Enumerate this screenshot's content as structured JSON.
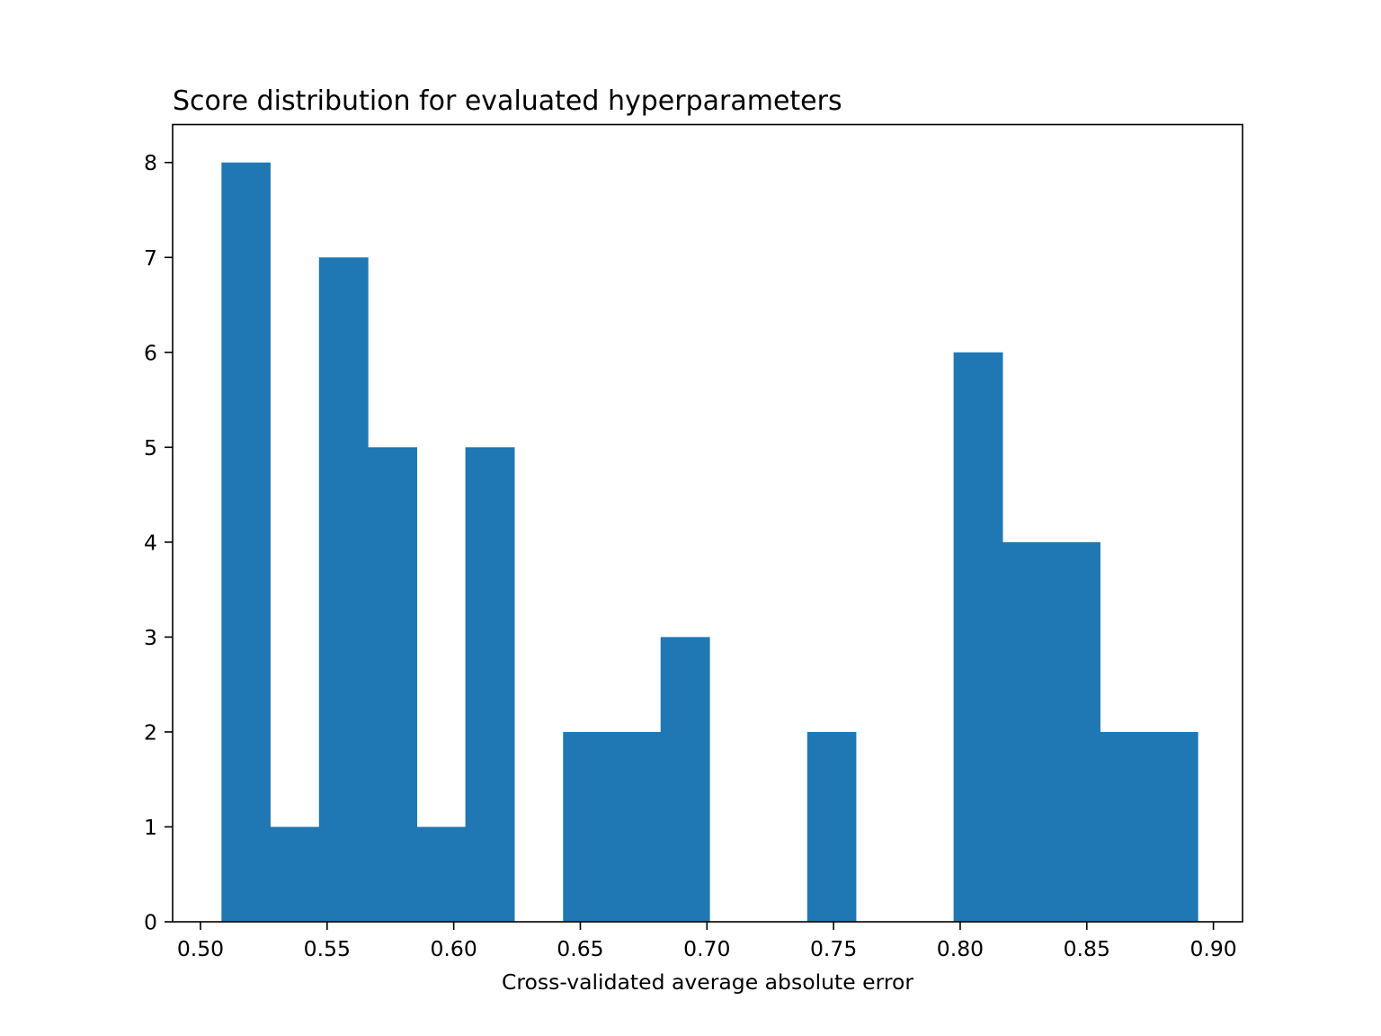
{
  "chart_data": {
    "type": "histogram",
    "title": "Score distribution for evaluated hyperparameters",
    "xlabel": "Cross-validated average absolute error",
    "ylabel": "",
    "xlim": [
      0.489,
      0.9115
    ],
    "ylim": [
      0,
      8.4
    ],
    "xticks": [
      "0.50",
      "0.55",
      "0.60",
      "0.65",
      "0.70",
      "0.75",
      "0.80",
      "0.85",
      "0.90"
    ],
    "yticks": [
      "0",
      "1",
      "2",
      "3",
      "4",
      "5",
      "6",
      "7",
      "8"
    ],
    "bins": [
      {
        "x0": 0.5083,
        "x1": 0.5275,
        "count": 8
      },
      {
        "x0": 0.5275,
        "x1": 0.5468,
        "count": 1
      },
      {
        "x0": 0.5468,
        "x1": 0.5661,
        "count": 7
      },
      {
        "x0": 0.5661,
        "x1": 0.5854,
        "count": 5
      },
      {
        "x0": 0.5854,
        "x1": 0.6046,
        "count": 1
      },
      {
        "x0": 0.6046,
        "x1": 0.6239,
        "count": 5
      },
      {
        "x0": 0.6239,
        "x1": 0.6432,
        "count": 0
      },
      {
        "x0": 0.6432,
        "x1": 0.6625,
        "count": 2
      },
      {
        "x0": 0.6625,
        "x1": 0.6817,
        "count": 2
      },
      {
        "x0": 0.6817,
        "x1": 0.701,
        "count": 3
      },
      {
        "x0": 0.701,
        "x1": 0.7203,
        "count": 0
      },
      {
        "x0": 0.7203,
        "x1": 0.7396,
        "count": 0
      },
      {
        "x0": 0.7396,
        "x1": 0.7588,
        "count": 2
      },
      {
        "x0": 0.7588,
        "x1": 0.7781,
        "count": 0
      },
      {
        "x0": 0.7781,
        "x1": 0.7974,
        "count": 0
      },
      {
        "x0": 0.7974,
        "x1": 0.8167,
        "count": 6
      },
      {
        "x0": 0.8167,
        "x1": 0.8359,
        "count": 4
      },
      {
        "x0": 0.8359,
        "x1": 0.8552,
        "count": 4
      },
      {
        "x0": 0.8552,
        "x1": 0.8745,
        "count": 2
      },
      {
        "x0": 0.8745,
        "x1": 0.8938,
        "count": 2
      }
    ],
    "bar_color": "#1f77b4",
    "grid": false,
    "legend": "none"
  }
}
